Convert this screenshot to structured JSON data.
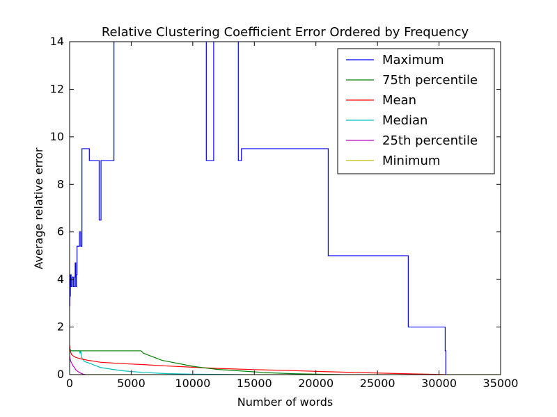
{
  "chart_data": {
    "type": "line",
    "title": "Relative Clustering Coefficient Error Ordered by Frequency",
    "xlabel": "Number of words",
    "ylabel": "Average relative error",
    "xlim": [
      0,
      35000
    ],
    "ylim": [
      0,
      14
    ],
    "xticks": [
      0,
      5000,
      10000,
      15000,
      20000,
      25000,
      30000,
      35000
    ],
    "yticks": [
      0,
      2,
      4,
      6,
      8,
      10,
      12,
      14
    ],
    "grid": false,
    "legend_position": "top-right",
    "series": [
      {
        "name": "Maximum",
        "color": "#0000ff",
        "step": true,
        "x": [
          0,
          20,
          60,
          120,
          200,
          300,
          400,
          450,
          500,
          550,
          600,
          700,
          800,
          900,
          1000,
          1100,
          1600,
          2400,
          2550,
          3500,
          3600,
          11100,
          11700,
          13700,
          13950,
          21000,
          27500,
          30500,
          30550
        ],
        "y": [
          2.9,
          3.3,
          4.2,
          3.7,
          4.1,
          3.7,
          4.1,
          4.7,
          3.7,
          4.2,
          5.4,
          5.4,
          6.0,
          5.4,
          9.5,
          9.5,
          9.0,
          6.5,
          9.0,
          9.0,
          14.5,
          9.0,
          14.5,
          9.0,
          9.5,
          5.0,
          2.0,
          1.0,
          0.0
        ]
      },
      {
        "name": "75th percentile",
        "color": "#008000",
        "step": false,
        "x": [
          0,
          100,
          200,
          600,
          2000,
          5800,
          6000,
          6500,
          7000,
          7500,
          8000,
          9000,
          10000,
          11000,
          12000,
          14000,
          16000,
          18000,
          20000,
          22000
        ],
        "y": [
          1.1,
          1.0,
          1.0,
          1.0,
          1.0,
          1.0,
          0.9,
          0.8,
          0.7,
          0.6,
          0.55,
          0.45,
          0.35,
          0.28,
          0.22,
          0.15,
          0.08,
          0.04,
          0.02,
          0.0
        ]
      },
      {
        "name": "Mean",
        "color": "#ff0000",
        "step": false,
        "x": [
          0,
          50,
          150,
          300,
          500,
          800,
          1000,
          1500,
          2500,
          4000,
          6000,
          8000,
          10000,
          12000,
          15000,
          18000,
          21000,
          24000,
          27000,
          29000,
          30500
        ],
        "y": [
          1.25,
          1.0,
          0.85,
          0.78,
          0.72,
          0.68,
          0.65,
          0.6,
          0.52,
          0.47,
          0.42,
          0.36,
          0.31,
          0.26,
          0.21,
          0.17,
          0.12,
          0.08,
          0.04,
          0.02,
          0.0
        ]
      },
      {
        "name": "Median",
        "color": "#00bfbf",
        "step": false,
        "x": [
          0,
          300,
          600,
          800,
          850,
          900,
          1000,
          1200,
          1500,
          2000,
          2500,
          3500,
          4500,
          6000,
          8000,
          10000,
          12000,
          14000
        ],
        "y": [
          1.0,
          1.0,
          1.0,
          1.0,
          0.9,
          1.0,
          0.7,
          0.55,
          0.5,
          0.4,
          0.3,
          0.22,
          0.15,
          0.09,
          0.04,
          0.02,
          0.01,
          0.0
        ]
      },
      {
        "name": "25th percentile",
        "color": "#bf00bf",
        "step": false,
        "x": [
          0,
          50,
          100,
          200,
          300,
          400,
          500,
          700,
          900,
          1100,
          1300
        ],
        "y": [
          0.8,
          0.65,
          0.55,
          0.45,
          0.35,
          0.3,
          0.2,
          0.12,
          0.06,
          0.02,
          0.0
        ]
      },
      {
        "name": "Minimum",
        "color": "#bfbf00",
        "step": false,
        "x": [
          0,
          35000
        ],
        "y": [
          0.0,
          0.0
        ]
      }
    ]
  }
}
